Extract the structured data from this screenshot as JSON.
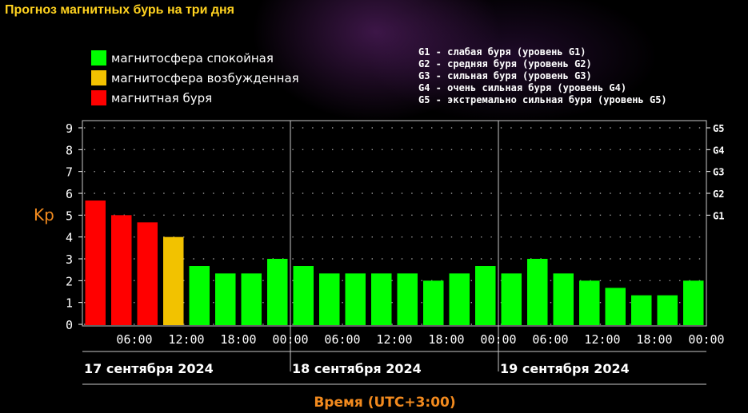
{
  "title": "Прогноз магнитных бурь на три дня",
  "legend": [
    {
      "label": "магнитосфера спокойная",
      "color": "#00ff00"
    },
    {
      "label": "магнитосфера возбужденная",
      "color": "#f2c200"
    },
    {
      "label": "магнитная буря",
      "color": "#ff0000"
    }
  ],
  "g_descriptions": [
    "G1 - слабая буря (уровень G1)",
    "G2 - средняя буря (уровень G2)",
    "G3 - сильная буря (уровень G3)",
    "G4 - очень сильная буря (уровень G4)",
    "G5 - экстремально сильная буря (уровень G5)"
  ],
  "chart_data": {
    "type": "bar",
    "ylabel": "Kp",
    "xlabel": "Время (UTC+3:00)",
    "ylim": [
      0,
      9
    ],
    "y_ticks": [
      "0",
      "1",
      "2",
      "3",
      "4",
      "5",
      "6",
      "7",
      "8",
      "9"
    ],
    "g_levels": [
      {
        "label": "G1",
        "kp": 5
      },
      {
        "label": "G2",
        "kp": 6
      },
      {
        "label": "G3",
        "kp": 7
      },
      {
        "label": "G4",
        "kp": 8
      },
      {
        "label": "G5",
        "kp": 9
      }
    ],
    "values": [
      5.67,
      5,
      4.67,
      4,
      2.67,
      2.33,
      2.33,
      3,
      2.67,
      2.33,
      2.33,
      2.33,
      2.33,
      2,
      2.33,
      2.67,
      2.33,
      3,
      2.33,
      2,
      1.67,
      1.33,
      1.33,
      2
    ],
    "levels": [
      "storm",
      "storm",
      "storm",
      "disturbed",
      "quiet",
      "quiet",
      "quiet",
      "quiet",
      "quiet",
      "quiet",
      "quiet",
      "quiet",
      "quiet",
      "quiet",
      "quiet",
      "quiet",
      "quiet",
      "quiet",
      "quiet",
      "quiet",
      "quiet",
      "quiet",
      "quiet",
      "quiet"
    ],
    "level_colors": {
      "quiet": "#00ff00",
      "disturbed": "#f2c200",
      "storm": "#ff0000"
    },
    "x_ticks": [
      "06:00",
      "12:00",
      "18:00",
      "00:00",
      "06:00",
      "12:00",
      "18:00",
      "00:00",
      "06:00",
      "12:00",
      "18:00",
      "00:00"
    ],
    "days": [
      "17 сентября 2024",
      "18 сентября 2024",
      "19 сентября 2024"
    ],
    "grid": true
  }
}
